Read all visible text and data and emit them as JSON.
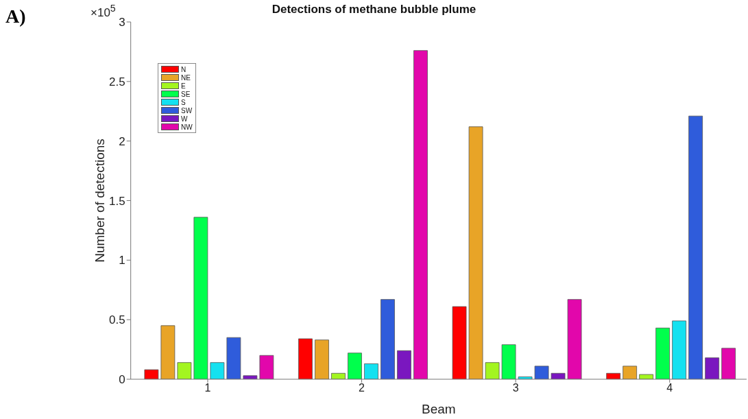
{
  "chart_data": {
    "type": "bar",
    "title": "Detections of methane bubble plume",
    "xlabel": "Beam",
    "ylabel": "Number of detections",
    "annotations": [
      "A)",
      "×10$^{5}$"
    ],
    "categories": [
      "1",
      "2",
      "3",
      "4"
    ],
    "series": [
      {
        "name": "N",
        "color": "#ff0000",
        "values": [
          0.08,
          0.34,
          0.61,
          0.05
        ]
      },
      {
        "name": "NE",
        "color": "#e8a427",
        "values": [
          0.45,
          0.33,
          2.12,
          0.11
        ]
      },
      {
        "name": "E",
        "color": "#a3f520",
        "values": [
          0.14,
          0.05,
          0.14,
          0.04
        ]
      },
      {
        "name": "SE",
        "color": "#00ff4c",
        "values": [
          1.36,
          0.22,
          0.29,
          0.43
        ]
      },
      {
        "name": "S",
        "color": "#14e1f0",
        "values": [
          0.14,
          0.13,
          0.02,
          0.49
        ]
      },
      {
        "name": "SW",
        "color": "#2f5cdb",
        "values": [
          0.35,
          0.67,
          0.11,
          2.21
        ]
      },
      {
        "name": "W",
        "color": "#7a17bf",
        "values": [
          0.03,
          0.24,
          0.05,
          0.18
        ]
      },
      {
        "name": "NW",
        "color": "#e207ab",
        "values": [
          0.2,
          2.76,
          0.67,
          0.26
        ]
      }
    ],
    "ylim": [
      0,
      3
    ],
    "yticks": [
      0,
      0.5,
      1,
      1.5,
      2,
      2.5,
      3
    ],
    "grid": false,
    "legend": "top left"
  }
}
